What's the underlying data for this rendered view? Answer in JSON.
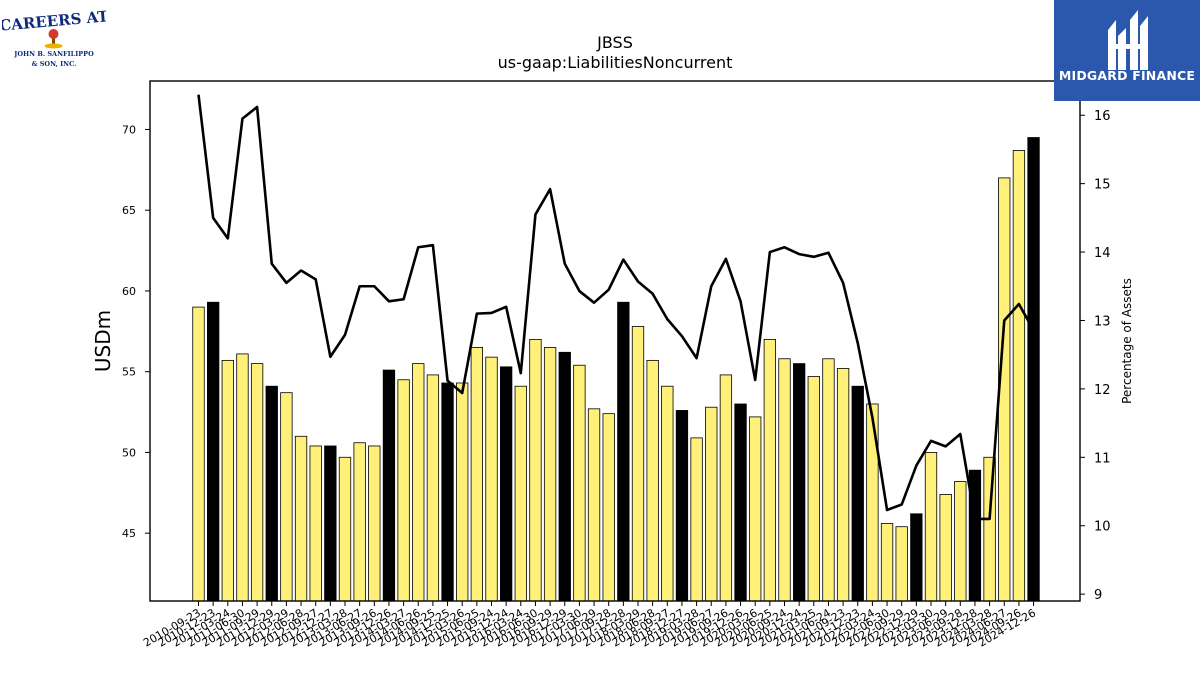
{
  "logos": {
    "left": {
      "line1": "CAREERS AT",
      "line2": "JOHN B. SANFILIPPO",
      "line3": "& SON, INC."
    },
    "right": {
      "text": "MIDGARD FINANCE"
    }
  },
  "chart_data": {
    "type": "bar",
    "title": "JBSS",
    "subtitle": "us-gaap:LiabilitiesNoncurrent",
    "ylabel": "USDm",
    "y2label": "Percentage of Assets",
    "ylim": [
      40.8,
      73
    ],
    "y2lim": [
      8.9,
      16.5
    ],
    "yticks": [
      45,
      50,
      55,
      60,
      65,
      70
    ],
    "y2ticks": [
      9,
      10,
      11,
      12,
      13,
      14,
      15,
      16
    ],
    "colors": {
      "bar": "#fff07a",
      "bar_highlight": "#000000",
      "line": "#000000",
      "edge": "#000000"
    },
    "categories": [
      "2010-09-23",
      "2010-12-23",
      "2011-03-24",
      "2011-06-30",
      "2011-09-29",
      "2011-12-29",
      "2012-03-29",
      "2012-06-28",
      "2012-09-27",
      "2012-12-27",
      "2013-03-28",
      "2013-06-27",
      "2013-09-26",
      "2013-12-26",
      "2014-03-27",
      "2014-06-26",
      "2014-09-25",
      "2014-12-25",
      "2015-03-26",
      "2015-06-25",
      "2015-09-24",
      "2015-12-24",
      "2016-03-24",
      "2016-06-30",
      "2016-09-29",
      "2016-12-29",
      "2017-03-30",
      "2017-06-29",
      "2017-09-28",
      "2017-12-28",
      "2018-03-29",
      "2018-06-28",
      "2018-09-27",
      "2018-12-27",
      "2019-03-28",
      "2019-06-27",
      "2019-09-26",
      "2019-12-26",
      "2020-03-26",
      "2020-06-25",
      "2020-09-24",
      "2020-12-24",
      "2021-03-25",
      "2021-06-24",
      "2021-09-23",
      "2021-12-23",
      "2022-03-24",
      "2022-06-30",
      "2022-09-29",
      "2022-12-29",
      "2023-03-30",
      "2023-06-29",
      "2023-09-28",
      "2023-12-28",
      "2024-03-28",
      "2024-06-27",
      "2024-09-26",
      "2024-12-26"
    ],
    "values": [
      59.0,
      59.3,
      55.7,
      56.1,
      55.5,
      54.1,
      53.7,
      51.0,
      50.4,
      50.4,
      49.7,
      50.6,
      50.4,
      55.1,
      54.5,
      55.5,
      54.8,
      54.3,
      54.3,
      56.5,
      55.9,
      55.3,
      54.1,
      57.0,
      56.5,
      56.2,
      55.4,
      52.7,
      52.4,
      59.3,
      57.8,
      55.7,
      54.1,
      52.6,
      50.9,
      52.8,
      54.8,
      53.0,
      52.2,
      57.0,
      55.8,
      55.5,
      54.7,
      55.8,
      55.2,
      54.1,
      53.0,
      45.6,
      45.4,
      46.2,
      50.0,
      47.4,
      48.2,
      48.9,
      49.7,
      67.0,
      68.7,
      69.5
    ],
    "highlight": [
      false,
      true,
      false,
      false,
      false,
      true,
      false,
      false,
      false,
      true,
      false,
      false,
      false,
      true,
      false,
      false,
      false,
      true,
      false,
      false,
      false,
      true,
      false,
      false,
      false,
      true,
      false,
      false,
      false,
      true,
      false,
      false,
      false,
      true,
      false,
      false,
      false,
      true,
      false,
      false,
      false,
      true,
      false,
      false,
      false,
      true,
      false,
      false,
      false,
      true,
      false,
      false,
      false,
      true,
      false,
      false,
      false,
      true
    ],
    "percent": [
      16.3,
      14.5,
      14.2,
      15.95,
      16.12,
      13.83,
      13.55,
      13.73,
      13.6,
      12.47,
      12.79,
      13.5,
      13.5,
      13.28,
      13.31,
      14.07,
      14.1,
      12.12,
      11.94,
      13.1,
      13.11,
      13.2,
      12.23,
      14.55,
      14.92,
      13.83,
      13.43,
      13.26,
      13.45,
      13.89,
      13.57,
      13.39,
      13.02,
      12.77,
      12.45,
      13.5,
      13.9,
      13.28,
      12.13,
      14.0,
      14.07,
      13.97,
      13.93,
      13.99,
      13.55,
      12.67,
      11.58,
      10.23,
      10.31,
      10.88,
      11.24,
      11.16,
      11.34,
      10.1,
      10.1,
      13.0,
      13.24,
      12.86
    ]
  }
}
